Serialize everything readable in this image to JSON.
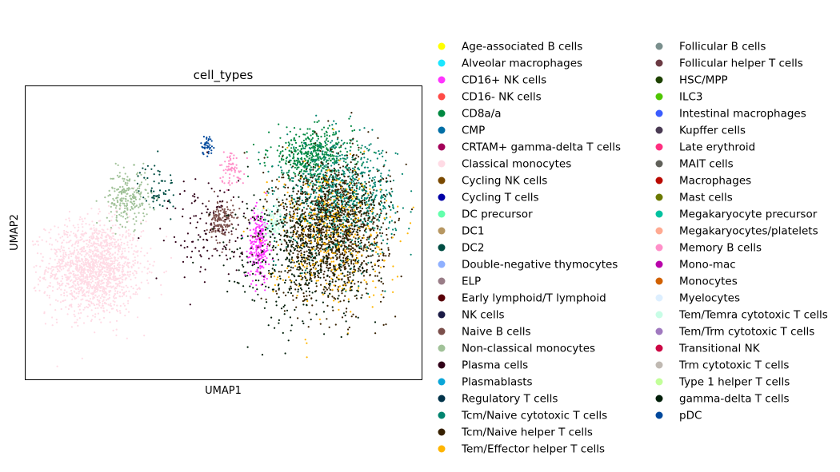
{
  "chart_data": {
    "type": "scatter",
    "title": "cell_types",
    "xlabel": "UMAP1",
    "ylabel": "UMAP2",
    "xticks": [],
    "yticks": [],
    "grid": false,
    "legend_placement": "right, outside plot, two columns",
    "x_range": [
      -9.5,
      9.5
    ],
    "y_range": [
      -7.5,
      7.5
    ],
    "legend": [
      {
        "name": "Age-associated B cells",
        "color": "#ffff00"
      },
      {
        "name": "Alveolar macrophages",
        "color": "#1ce6ff"
      },
      {
        "name": "CD16+ NK cells",
        "color": "#ff34ff"
      },
      {
        "name": "CD16- NK cells",
        "color": "#ff4a46"
      },
      {
        "name": "CD8a/a",
        "color": "#008941"
      },
      {
        "name": "CMP",
        "color": "#006fa6"
      },
      {
        "name": "CRTAM+ gamma-delta T cells",
        "color": "#a30059"
      },
      {
        "name": "Classical monocytes",
        "color": "#ffdbe5"
      },
      {
        "name": "Cycling NK cells",
        "color": "#7a4900"
      },
      {
        "name": "Cycling T cells",
        "color": "#0000a6"
      },
      {
        "name": "DC precursor",
        "color": "#63ffac"
      },
      {
        "name": "DC1",
        "color": "#b79762"
      },
      {
        "name": "DC2",
        "color": "#004d43"
      },
      {
        "name": "Double-negative thymocytes",
        "color": "#8fb0ff"
      },
      {
        "name": "ELP",
        "color": "#997d87"
      },
      {
        "name": "Early lymphoid/T lymphoid",
        "color": "#5a0007"
      },
      {
        "name": "NK cells",
        "color": "#1b1b45"
      },
      {
        "name": "Naive B cells",
        "color": "#7b4f4b"
      },
      {
        "name": "Non-classical monocytes",
        "color": "#a1c299"
      },
      {
        "name": "Plasma cells",
        "color": "#300018"
      },
      {
        "name": "Plasmablasts",
        "color": "#0aa6d8"
      },
      {
        "name": "Regulatory T cells",
        "color": "#013349"
      },
      {
        "name": "Tcm/Naive cytotoxic T cells",
        "color": "#00846f"
      },
      {
        "name": "Tcm/Naive helper T cells",
        "color": "#372101"
      },
      {
        "name": "Tem/Effector helper T cells",
        "color": "#ffb500"
      },
      {
        "name": "Follicular B cells",
        "color": "#7a8f8d"
      },
      {
        "name": "Follicular helper T cells",
        "color": "#6b3a43"
      },
      {
        "name": "HSC/MPP",
        "color": "#1e4200"
      },
      {
        "name": "ILC3",
        "color": "#4fc601"
      },
      {
        "name": "Intestinal macrophages",
        "color": "#3b5dff"
      },
      {
        "name": "Kupffer cells",
        "color": "#4a3b53"
      },
      {
        "name": "Late erythroid",
        "color": "#ff2f80"
      },
      {
        "name": "MAIT cells",
        "color": "#61615a"
      },
      {
        "name": "Macrophages",
        "color": "#ba0900"
      },
      {
        "name": "Mast cells",
        "color": "#6b7900"
      },
      {
        "name": "Megakaryocyte precursor",
        "color": "#00c2a0"
      },
      {
        "name": "Megakaryocytes/platelets",
        "color": "#ffaa92"
      },
      {
        "name": "Memory B cells",
        "color": "#ff90c9"
      },
      {
        "name": "Mono-mac",
        "color": "#b903aa"
      },
      {
        "name": "Monocytes",
        "color": "#d16100"
      },
      {
        "name": "Myelocytes",
        "color": "#ddefff"
      },
      {
        "name": "Tem/Temra cytotoxic T cells",
        "color": "#c8fde6"
      },
      {
        "name": "Tem/Trm cytotoxic T cells",
        "color": "#a079bf"
      },
      {
        "name": "Transitional NK",
        "color": "#cc0744"
      },
      {
        "name": "Trm cytotoxic T cells",
        "color": "#c0b9b2"
      },
      {
        "name": "Type 1 helper T cells",
        "color": "#c2ff99"
      },
      {
        "name": "gamma-delta T cells",
        "color": "#001e09"
      },
      {
        "name": "pDC",
        "color": "#00489c"
      }
    ],
    "clusters": [
      {
        "name": "Classical monocytes",
        "center": [
          -6.2,
          -1.8
        ],
        "spread": [
          2.3,
          2.4
        ],
        "count": 1500
      },
      {
        "name": "Non-classical monocytes",
        "center": [
          -4.6,
          1.8
        ],
        "spread": [
          1.0,
          1.4
        ],
        "count": 230
      },
      {
        "name": "DC2",
        "center": [
          -3.2,
          2.3
        ],
        "spread": [
          0.9,
          1.3
        ],
        "count": 60
      },
      {
        "name": "pDC",
        "center": [
          -0.8,
          4.5
        ],
        "spread": [
          0.3,
          0.5
        ],
        "count": 40
      },
      {
        "name": "Naive B cells",
        "center": [
          -0.1,
          0.6
        ],
        "spread": [
          0.6,
          1.1
        ],
        "count": 170
      },
      {
        "name": "Memory B cells",
        "center": [
          0.4,
          3.3
        ],
        "spread": [
          0.6,
          0.9
        ],
        "count": 70
      },
      {
        "name": "CD16+ NK cells",
        "center": [
          1.7,
          -0.6
        ],
        "spread": [
          0.5,
          1.8
        ],
        "count": 240
      },
      {
        "name": "Tem/Temra cytotoxic T cells",
        "center": [
          2.4,
          0.4
        ],
        "spread": [
          0.7,
          1.0
        ],
        "count": 120
      },
      {
        "name": "CD8a/a",
        "center": [
          4.2,
          4.0
        ],
        "spread": [
          2.0,
          1.3
        ],
        "count": 420
      },
      {
        "name": "Tcm/Naive cytotoxic T cells",
        "center": [
          5.6,
          1.8
        ],
        "spread": [
          2.6,
          2.8
        ],
        "count": 900
      },
      {
        "name": "Tcm/Naive helper T cells",
        "center": [
          5.2,
          0.2
        ],
        "spread": [
          2.6,
          3.6
        ],
        "count": 1400
      },
      {
        "name": "Tem/Effector helper T cells",
        "center": [
          5.0,
          0.0
        ],
        "spread": [
          2.9,
          3.6
        ],
        "count": 350
      },
      {
        "name": "gamma-delta T cells",
        "center": [
          3.8,
          -1.2
        ],
        "spread": [
          3.6,
          3.6
        ],
        "count": 500
      },
      {
        "name": "Plasma cells",
        "center": [
          -0.8,
          0.2
        ],
        "spread": [
          2.2,
          2.8
        ],
        "count": 120
      }
    ]
  }
}
